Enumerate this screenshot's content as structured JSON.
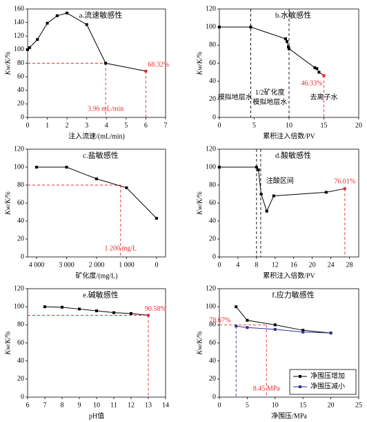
{
  "chart_data": [
    {
      "type": "line",
      "title": "a.流速敏感性",
      "xlabel": "注入流速/(mL/min)",
      "ylabel": "Kw/K/%",
      "xlim": [
        0,
        7
      ],
      "ylim": [
        0,
        160
      ],
      "xticks": [
        0,
        1,
        2,
        3,
        4,
        5,
        6,
        7
      ],
      "yticks": [
        0,
        20,
        40,
        60,
        80,
        100,
        120,
        140,
        160
      ],
      "series": [
        {
          "color": "#000000",
          "x": [
            0,
            0.1,
            0.5,
            1,
            1.5,
            2,
            3,
            3.96,
            6
          ],
          "values": [
            100,
            103,
            115,
            139,
            150,
            154,
            137,
            80,
            68.32
          ],
          "value_labels": [
            null,
            null,
            null,
            null,
            null,
            null,
            null,
            null,
            "68.32%"
          ]
        }
      ],
      "threshold": {
        "x": {
          "value": 3.96,
          "label": "3.96 mL/min"
        },
        "y": 80
      }
    },
    {
      "type": "line",
      "title": "b.水敏感性",
      "xlabel": "累积注入倍数/PV",
      "ylabel": "Kw/K/%",
      "xlim": [
        0,
        20
      ],
      "ylim": [
        0,
        120
      ],
      "xticks": [
        0,
        5,
        10,
        15,
        20
      ],
      "yticks": [
        0,
        20,
        40,
        60,
        80,
        100,
        120
      ],
      "series": [
        {
          "color": "#000000",
          "x": [
            0,
            4.5,
            9.5,
            9.7,
            9.9,
            10,
            13.7,
            14,
            14.3,
            15
          ],
          "values": [
            100,
            100,
            87,
            84,
            78,
            76,
            55,
            54,
            50,
            46.33
          ],
          "value_labels": [
            null,
            null,
            null,
            null,
            null,
            null,
            null,
            null,
            null,
            "46.33%"
          ]
        }
      ],
      "regions": {
        "dividers": [
          4.5,
          10
        ],
        "labels": [
          [
            "模拟地层水"
          ],
          [
            "1/2矿化度",
            "模拟地层水"
          ],
          [
            "去离子水"
          ]
        ]
      }
    },
    {
      "type": "line",
      "title": "c.盐敏感性",
      "xlabel": "矿化度/(mg/L)",
      "ylabel": "Kw/K/%",
      "xlim": [
        4300,
        -300
      ],
      "ylim": [
        0,
        120
      ],
      "xticks": [
        {
          "value": 4000,
          "label": "4 000"
        },
        {
          "value": 3000,
          "label": "3 000"
        },
        {
          "value": 2000,
          "label": "2 000"
        },
        {
          "value": 1000,
          "label": "1 000"
        },
        0
      ],
      "yticks": [
        0,
        20,
        40,
        60,
        80,
        100,
        120
      ],
      "series": [
        {
          "color": "#000000",
          "x": [
            4000,
            3000,
            2000,
            1000,
            0
          ],
          "values": [
            100,
            100,
            87,
            77,
            43
          ]
        }
      ],
      "threshold": {
        "x": {
          "value": 1200,
          "label": "1 200 mg/L"
        },
        "y": 80
      }
    },
    {
      "type": "line",
      "title": "d.酸敏感性",
      "xlabel": "累积注入倍数/PV",
      "ylabel": "Kw/K/%",
      "xlim": [
        0,
        30
      ],
      "ylim": [
        0,
        120
      ],
      "xticks": [
        0,
        4,
        8,
        12,
        16,
        20,
        24,
        28
      ],
      "yticks": [
        0,
        20,
        40,
        60,
        80,
        100,
        120
      ],
      "series": [
        {
          "color": "#000000",
          "x": [
            0,
            8,
            8.4,
            9,
            10.2,
            11.7,
            23,
            27
          ],
          "values": [
            100,
            100,
            97,
            70,
            51,
            68,
            72,
            76.01
          ],
          "value_labels": [
            null,
            null,
            null,
            null,
            null,
            null,
            null,
            "76.01%"
          ]
        }
      ],
      "regions": {
        "dividers": [
          8,
          8.9
        ],
        "labels": [
          [
            "注酸区间"
          ]
        ]
      }
    },
    {
      "type": "line",
      "title": "e.碱敏感性",
      "xlabel": "pH值",
      "ylabel": "Kw/K/%",
      "xlim": [
        6,
        14
      ],
      "ylim": [
        0,
        120
      ],
      "xticks": [
        6,
        7,
        8,
        9,
        10,
        11,
        12,
        13,
        14
      ],
      "yticks": [
        0,
        20,
        40,
        60,
        80,
        100,
        120
      ],
      "series": [
        {
          "color": "#000000",
          "x": [
            7,
            8,
            9,
            10,
            11,
            12,
            13
          ],
          "values": [
            100,
            99.5,
            97.5,
            95.5,
            93.5,
            92.5,
            90.58
          ],
          "value_labels": [
            null,
            null,
            null,
            null,
            null,
            null,
            "90.58%"
          ]
        }
      ],
      "label_guides": "xy"
    },
    {
      "type": "line",
      "title": "f.应力敏感性",
      "xlabel": "净围压/MPa",
      "ylabel": "Kw/K/%",
      "xlim": [
        0,
        25
      ],
      "ylim": [
        0,
        120
      ],
      "xticks": [
        0,
        5,
        10,
        15,
        20,
        25
      ],
      "yticks": [
        0,
        20,
        40,
        60,
        80,
        100,
        120
      ],
      "series": [
        {
          "name": "净围压增加",
          "color": "#000000",
          "x": [
            3,
            5,
            10,
            15,
            20
          ],
          "values": [
            100,
            85,
            80,
            74,
            71
          ]
        },
        {
          "name": "净围压减小",
          "color": "#2e3192",
          "x": [
            3,
            5,
            10,
            15,
            20
          ],
          "values": [
            78.67,
            77,
            75,
            72,
            71
          ],
          "value_labels": [
            "78.67%",
            null,
            null,
            null,
            null
          ]
        }
      ],
      "threshold": {
        "x": {
          "value": 8.45,
          "label": "8.45 MPa"
        },
        "y": 80
      },
      "legend": "lower right"
    }
  ]
}
